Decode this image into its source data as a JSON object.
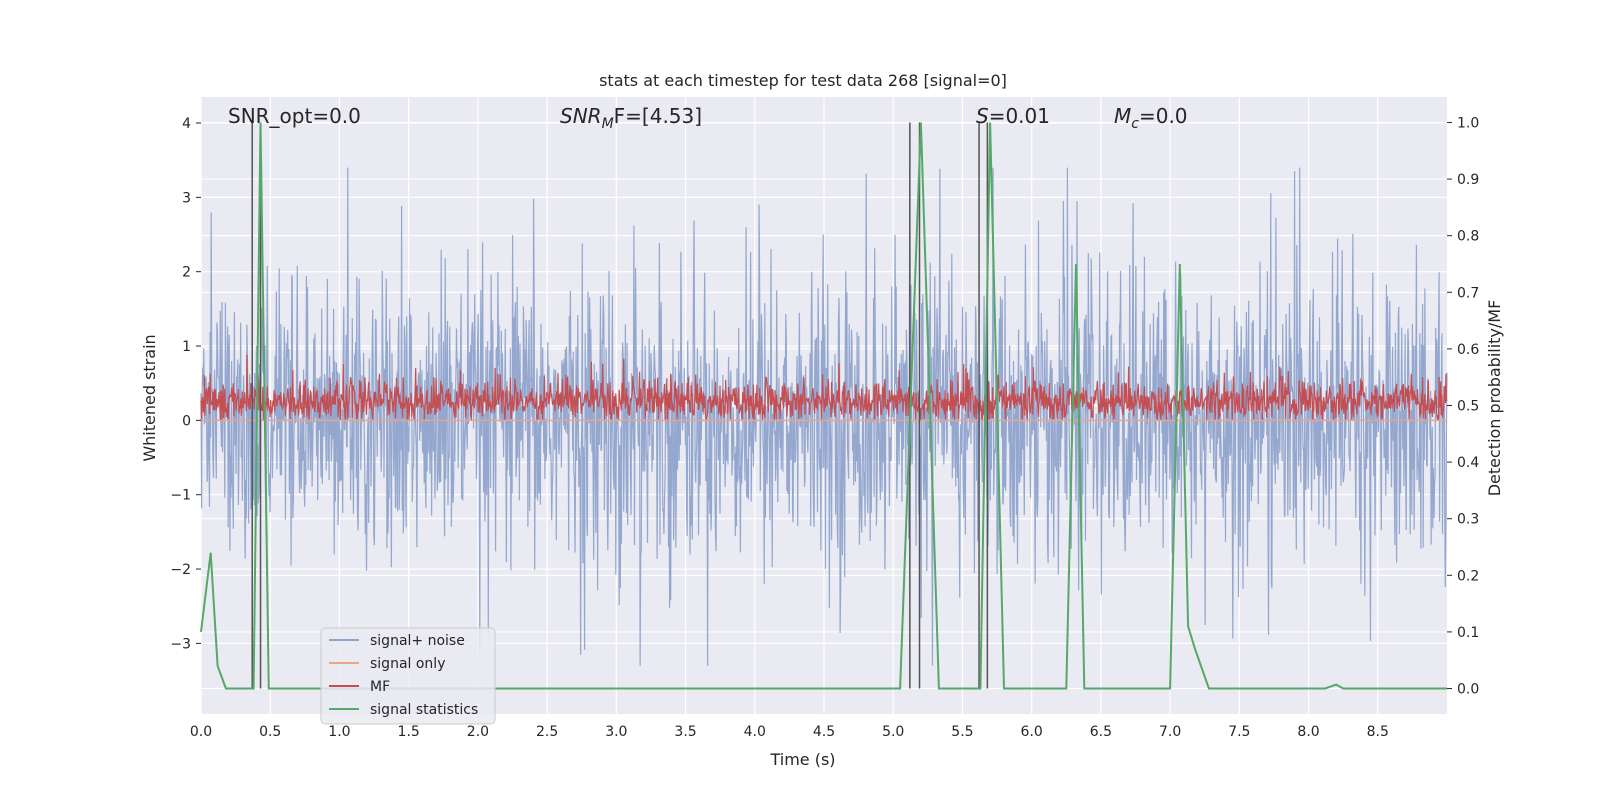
{
  "chart_data": {
    "type": "line",
    "title": "stats at each timestep for test data 268 [signal=0]",
    "xlabel": "Time (s)",
    "ylabel": "Whitened strain",
    "y2label": "Detection probability/MF",
    "xlim": [
      0.0,
      9.0
    ],
    "ylim": [
      -3.95,
      4.35
    ],
    "y2lim": [
      -0.045,
      1.045
    ],
    "xticks": [
      "0.0",
      "0.5",
      "1.0",
      "1.5",
      "2.0",
      "2.5",
      "3.0",
      "3.5",
      "4.0",
      "4.5",
      "5.0",
      "5.5",
      "6.0",
      "6.5",
      "7.0",
      "7.5",
      "8.0",
      "8.5"
    ],
    "yticks": [
      "4",
      "3",
      "2",
      "1",
      "0",
      "−1",
      "−2",
      "−3"
    ],
    "y2ticks": [
      "1.0",
      "0.9",
      "0.8",
      "0.7",
      "0.6",
      "0.5",
      "0.4",
      "0.3",
      "0.2",
      "0.1",
      "0.0"
    ],
    "grid": true,
    "legend_position": "lower-left",
    "annotations": {
      "snr_opt": "SNR_opt=0.0",
      "snr_mf_main": "SNR",
      "snr_mf_sub": "M",
      "snr_mf_after": "F=[4.53]",
      "s_main": "S",
      "s_after": "=0.01",
      "mc_main": "M",
      "mc_sub": "c",
      "mc_after": "=0.0"
    },
    "series": [
      {
        "name": "signal+ noise",
        "color": "#8fa3cc",
        "description_values": "noise band roughly −2.5 to +2.5 with spikes up to 3.4 and down to −3.3"
      },
      {
        "name": "signal only",
        "color": "#e8a48c",
        "values_constant": 0.0
      },
      {
        "name": "MF",
        "color": "#c44e52",
        "description_values": "matched filter output between 0.0 and 0.85 on left axis"
      },
      {
        "name": "signal statistics",
        "color": "#55a868",
        "x": [
          0.0,
          0.07,
          0.12,
          0.18,
          0.38,
          0.43,
          0.49,
          5.05,
          5.2,
          5.33,
          5.63,
          5.7,
          5.8,
          6.25,
          6.32,
          6.38,
          7.0,
          7.07,
          7.13,
          7.18,
          7.28,
          8.12,
          8.2,
          8.25,
          9.0
        ],
        "values": [
          0.1,
          0.24,
          0.04,
          0.0,
          0.0,
          1.0,
          0.0,
          0.0,
          1.0,
          0.0,
          0.0,
          1.0,
          0.0,
          0.0,
          0.75,
          0.0,
          0.0,
          0.75,
          0.11,
          0.07,
          0.0,
          0.0,
          0.007,
          0.0,
          0.0
        ]
      },
      {
        "name": "markers",
        "color": "#555555",
        "x": [
          0.37,
          0.43,
          5.12,
          5.19,
          5.62,
          5.68
        ]
      }
    ]
  }
}
